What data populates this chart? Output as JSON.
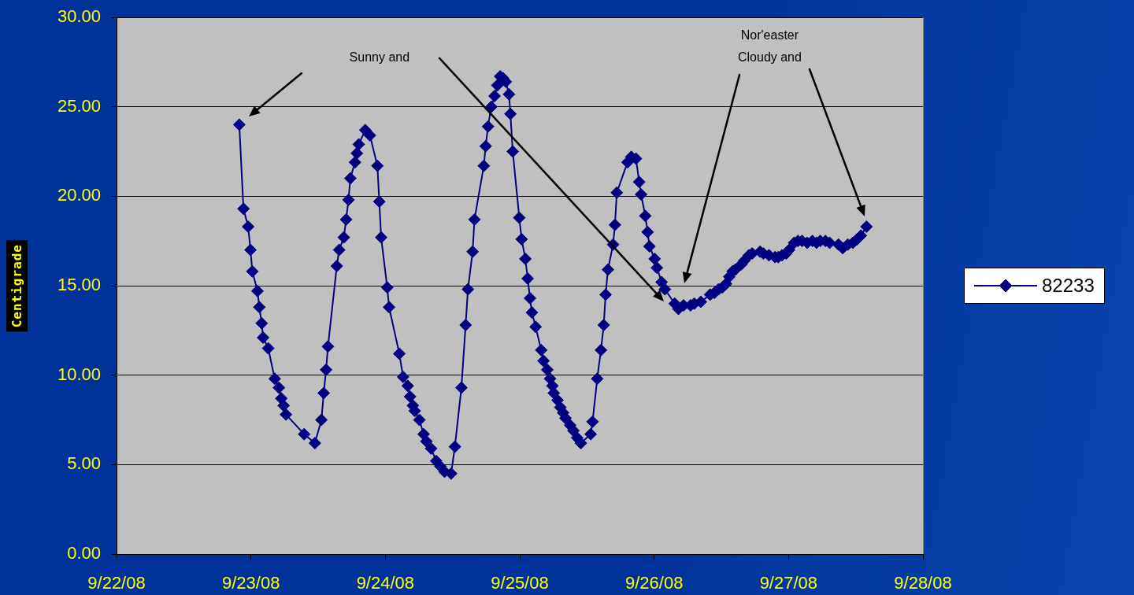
{
  "chart_data": {
    "type": "line",
    "ylabel": "Centigrade",
    "annotations": [
      "Sunny and",
      "Nor'easter\nCloudy and"
    ],
    "x": [
      "--09-22T21:55",
      "--09-22T22:40",
      "--09-22T23:30",
      "--09-22T23:55",
      "--09-23T00:15",
      "--09-23T01:10",
      "--09-23T01:30",
      "--09-23T01:55",
      "--09-23T02:10",
      "--09-23T03:05",
      "--09-23T04:15",
      "--09-23T05:00",
      "--09-23T05:25",
      "--09-23T05:50",
      "--09-23T06:15",
      "--09-23T09:30",
      "--09-23T11:25",
      "--09-23T12:35",
      "--09-23T13:00",
      "--09-23T13:25",
      "--09-23T13:45",
      "--09-23T15:20",
      "--09-23T15:45",
      "--09-23T16:35",
      "--09-23T17:00",
      "--09-23T17:25",
      "--09-23T17:45",
      "--09-23T18:35",
      "--09-23T18:55",
      "--09-23T19:15",
      "--09-23T20:25",
      "--09-23T21:15",
      "--09-23T22:35",
      "--09-23T22:55",
      "--09-23T23:15",
      "--09-24T00:20",
      "--09-24T00:40",
      "--09-24T02:30",
      "--09-24T03:10",
      "--09-24T04:00",
      "--09-24T04:25",
      "--09-24T04:55",
      "--09-24T05:15",
      "--09-24T06:05",
      "--09-24T06:50",
      "--09-24T07:20",
      "--09-24T08:10",
      "--09-24T09:05",
      "--09-24T09:50",
      "--09-24T10:35",
      "--09-24T11:45",
      "--09-24T12:25",
      "--09-24T13:35",
      "--09-24T14:20",
      "--09-24T14:45",
      "--09-24T15:35",
      "--09-24T15:55",
      "--09-24T17:35",
      "--09-24T17:55",
      "--09-24T18:20",
      "--09-24T18:55",
      "--09-24T19:30",
      "--09-24T20:00",
      "--09-24T20:30",
      "--09-24T21:00",
      "--09-24T21:30",
      "--09-24T22:05",
      "--09-24T22:20",
      "--09-24T22:45",
      "--09-24T23:55",
      "--09-25T00:20",
      "--09-25T01:00",
      "--09-25T01:25",
      "--09-25T01:50",
      "--09-25T02:10",
      "--09-25T02:50",
      "--09-25T03:50",
      "--09-25T04:15",
      "--09-25T04:55",
      "--09-25T05:25",
      "--09-25T05:50",
      "--09-25T06:05",
      "--09-25T06:45",
      "--09-25T07:15",
      "--09-25T07:45",
      "--09-25T08:10",
      "--09-25T09:00",
      "--09-25T09:35",
      "--09-25T10:15",
      "--09-25T10:55",
      "--09-25T12:40",
      "--09-25T13:00",
      "--09-25T13:50",
      "--09-25T14:30",
      "--09-25T15:00",
      "--09-25T15:20",
      "--09-25T15:45",
      "--09-25T16:40",
      "--09-25T17:00",
      "--09-25T17:20",
      "--09-25T19:15",
      "--09-25T19:55",
      "--09-25T20:45",
      "--09-25T21:20",
      "--09-25T21:40",
      "--09-25T22:25",
      "--09-25T22:50",
      "--09-25T23:10",
      "--09-26T00:05",
      "--09-26T00:30",
      "--09-26T01:20",
      "--09-26T01:55",
      "--09-26T03:40",
      "--09-26T04:20",
      "--09-26T05:15",
      "--09-26T06:30",
      "--09-26T07:10",
      "--09-26T08:20",
      "--09-26T10:00",
      "--09-26T10:45",
      "--09-26T11:30",
      "--09-26T12:10",
      "--09-26T12:50",
      "--09-26T13:25",
      "--09-26T14:00",
      "--09-26T14:30",
      "--09-26T15:35",
      "--09-26T16:05",
      "--09-26T16:55",
      "--09-26T17:30",
      "--09-26T18:55",
      "--09-26T19:30",
      "--09-26T20:30",
      "--09-26T21:35",
      "--09-26T22:10",
      "--09-26T22:50",
      "--09-26T23:35",
      "--09-27T00:05",
      "--09-27T01:00",
      "--09-27T01:40",
      "--09-27T02:25",
      "--09-27T03:20",
      "--09-27T04:15",
      "--09-27T05:00",
      "--09-27T05:40",
      "--09-27T06:35",
      "--09-27T07:20",
      "--09-27T08:55",
      "--09-27T09:40",
      "--09-27T10:35",
      "--09-27T11:30",
      "--09-27T12:15",
      "--09-27T12:55",
      "--09-27T13:55"
    ],
    "series": [
      {
        "name": "82233",
        "color": "#000080",
        "values": [
          24.0,
          19.3,
          18.3,
          17.0,
          15.8,
          14.7,
          13.8,
          12.9,
          12.1,
          11.5,
          9.8,
          9.3,
          8.7,
          8.3,
          7.8,
          6.7,
          6.2,
          7.5,
          9.0,
          10.3,
          11.6,
          16.1,
          17.0,
          17.7,
          18.7,
          19.8,
          21.0,
          21.9,
          22.4,
          22.9,
          23.7,
          23.4,
          21.7,
          19.7,
          17.7,
          14.9,
          13.8,
          11.2,
          9.9,
          9.4,
          8.8,
          8.3,
          8.0,
          7.5,
          6.7,
          6.3,
          5.9,
          5.2,
          4.9,
          4.6,
          4.5,
          6.0,
          9.3,
          12.8,
          14.8,
          16.9,
          18.7,
          21.7,
          22.8,
          23.9,
          25.0,
          25.6,
          26.2,
          26.7,
          26.6,
          26.4,
          25.7,
          24.6,
          22.5,
          18.8,
          17.6,
          16.5,
          15.4,
          14.3,
          13.5,
          12.7,
          11.4,
          10.8,
          10.3,
          9.8,
          9.4,
          9.0,
          8.6,
          8.2,
          7.9,
          7.6,
          7.2,
          6.9,
          6.5,
          6.2,
          6.7,
          7.4,
          9.8,
          11.4,
          12.8,
          14.5,
          15.9,
          17.3,
          18.4,
          20.2,
          21.9,
          22.2,
          22.1,
          20.8,
          20.1,
          18.9,
          18.0,
          17.2,
          16.5,
          16.0,
          15.2,
          14.8,
          14.0,
          13.7,
          13.9,
          13.9,
          14.0,
          14.1,
          14.5,
          14.6,
          14.8,
          14.9,
          15.1,
          15.5,
          15.8,
          15.9,
          16.2,
          16.4,
          16.7,
          16.8,
          16.9,
          16.8,
          16.7,
          16.6,
          16.6,
          16.7,
          16.8,
          17.0,
          17.4,
          17.5,
          17.5,
          17.4,
          17.5,
          17.4,
          17.5,
          17.5,
          17.4,
          17.3,
          17.1,
          17.3,
          17.4,
          17.6,
          17.8,
          18.3
        ]
      }
    ],
    "xlim": [
      "--09-22",
      "--09-28"
    ],
    "xticks": [
      {
        "value": "--09-22",
        "label": "9/22/08"
      },
      {
        "value": "--09-23",
        "label": "9/23/08"
      },
      {
        "value": "--09-24",
        "label": "9/24/08"
      },
      {
        "value": "--09-25",
        "label": "9/25/08"
      },
      {
        "value": "--09-26",
        "label": "9/26/08"
      },
      {
        "value": "--09-27",
        "label": "9/27/08"
      },
      {
        "value": "--09-28",
        "label": "9/28/08"
      }
    ],
    "ylim": [
      0,
      30
    ],
    "yticks": [
      {
        "value": 0,
        "label": "0.00"
      },
      {
        "value": 5,
        "label": "5.00"
      },
      {
        "value": 10,
        "label": "10.00"
      },
      {
        "value": 15,
        "label": "15.00"
      },
      {
        "value": 20,
        "label": "20.00"
      },
      {
        "value": 25,
        "label": "25.00"
      },
      {
        "value": 30,
        "label": "30.00"
      }
    ],
    "grid": "y",
    "legend": "right",
    "marker": "diamond",
    "line_style": "solid"
  }
}
